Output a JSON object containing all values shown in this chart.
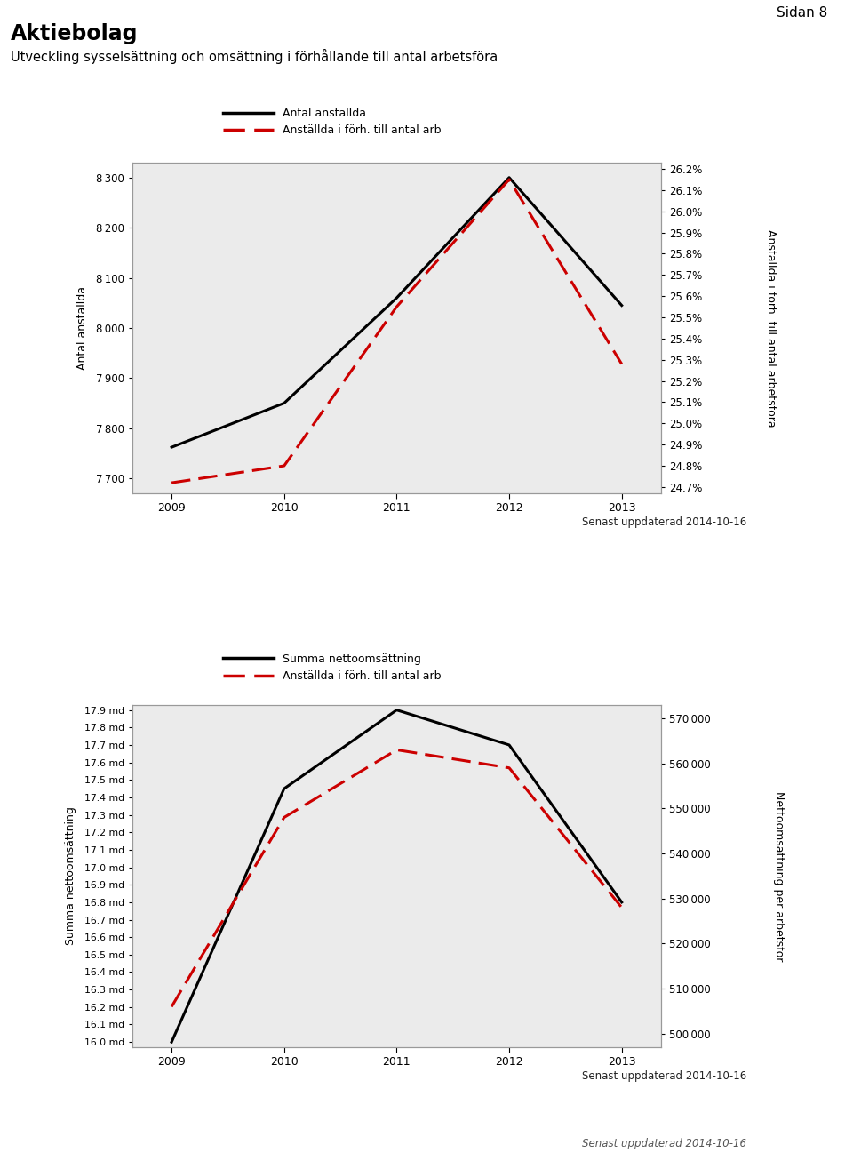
{
  "page_label": "Sidan 8",
  "main_title": "Aktiebolag",
  "subtitle": "Utveckling sysselsättning och omsättning i förhållande till antal arbetsföra",
  "update_text": "Senast uppdaterad 2014-10-16",
  "chart1": {
    "years": [
      2009,
      2010,
      2011,
      2012,
      2013
    ],
    "antal_anstallda": [
      7762,
      7850,
      8060,
      8300,
      8045
    ],
    "anstallda_forh": [
      24.72,
      24.8,
      25.55,
      26.15,
      25.28
    ],
    "left_label": "Antal anställda",
    "right_label": "Anställda i förh. till antal arbetsföra",
    "legend1": "Antal anställda",
    "legend2": "Anställda i förh. till antal arb",
    "yleft_min": 7700,
    "yleft_max": 8300,
    "yleft_step": 100,
    "yright_min": 24.7,
    "yright_max": 26.2,
    "yright_step": 0.1
  },
  "chart2": {
    "years": [
      2009,
      2010,
      2011,
      2012,
      2013
    ],
    "summa_netto": [
      16000000,
      17450000,
      17900000,
      17700000,
      16800000
    ],
    "netto_forh": [
      506000,
      548000,
      563000,
      559000,
      528000
    ],
    "left_label": "Summa nettoomsättning",
    "right_label": "Nettoomsättning per arbetsför",
    "legend1": "Summa nettoomsättning",
    "legend2": "Anställda i förh. till antal arb",
    "yleft_min": 16000000,
    "yleft_max": 17900000,
    "yleft_step": 100000,
    "yright_min": 500000,
    "yright_max": 570000,
    "yright_step": 10000
  },
  "line_color_solid": "#000000",
  "line_color_dashed": "#cc0000",
  "plot_bg": "#ebebeb"
}
